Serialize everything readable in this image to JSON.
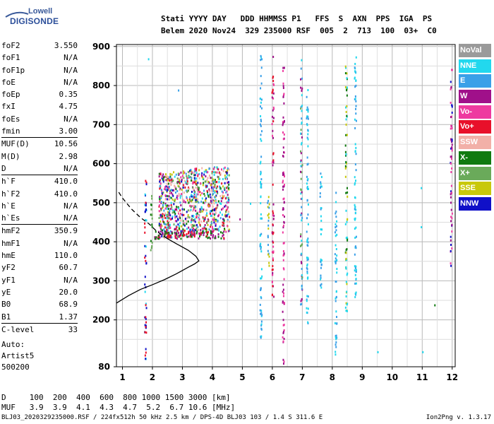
{
  "logo": {
    "top": "Lowell",
    "bottom": "DIGISONDE"
  },
  "header": {
    "line1": "Stati YYYY DAY   DDD HHMMSS P1   FFS  S  AXN  PPS  IGA  PS",
    "line2": "Belem 2020 Nov24  329 235000 RSF  005  2  713  100  03+  C0"
  },
  "params": [
    {
      "name": "foF2",
      "value": "3.550"
    },
    {
      "name": "foF1",
      "value": "N/A"
    },
    {
      "name": "foF1p",
      "value": "N/A"
    },
    {
      "name": "foE",
      "value": "N/A"
    },
    {
      "name": "foEp",
      "value": "0.35"
    },
    {
      "name": "fxI",
      "value": "4.75"
    },
    {
      "name": "foEs",
      "value": "N/A"
    },
    {
      "name": "fmin",
      "value": "3.00"
    },
    {
      "name": "MUF(D)",
      "value": "10.56",
      "sep": true
    },
    {
      "name": "M(D)",
      "value": "2.98"
    },
    {
      "name": "D",
      "value": "N/A"
    },
    {
      "name": "h`F",
      "value": "410.0",
      "sep": true
    },
    {
      "name": "h`F2",
      "value": "410.0"
    },
    {
      "name": "h`E",
      "value": "N/A"
    },
    {
      "name": "h`Es",
      "value": "N/A"
    },
    {
      "name": "hmF2",
      "value": "350.9",
      "sep": true
    },
    {
      "name": "hmF1",
      "value": "N/A"
    },
    {
      "name": "hmE",
      "value": "110.0"
    },
    {
      "name": "yF2",
      "value": "60.7"
    },
    {
      "name": "yF1",
      "value": "N/A"
    },
    {
      "name": "yE",
      "value": "20.0"
    },
    {
      "name": "B0",
      "value": "68.9"
    },
    {
      "name": "B1",
      "value": "1.37"
    },
    {
      "name": "C-level",
      "value": "33",
      "sep": true
    }
  ],
  "auto": [
    "Auto:",
    "Artist5",
    "500200"
  ],
  "legend": [
    {
      "label": "NoVal",
      "color": "#9a9a9a"
    },
    {
      "label": "NNE",
      "color": "#22d8ee"
    },
    {
      "label": "E",
      "color": "#3aa0e8"
    },
    {
      "label": "W",
      "color": "#a0108a"
    },
    {
      "label": "Vo-",
      "color": "#ee3aa0"
    },
    {
      "label": "Vo+",
      "color": "#e8102a"
    },
    {
      "label": "SSW",
      "color": "#f2b0a8"
    },
    {
      "label": "X-",
      "color": "#107a10"
    },
    {
      "label": "X+",
      "color": "#6aaa5a"
    },
    {
      "label": "SSE",
      "color": "#c8c80a"
    },
    {
      "label": "NNW",
      "color": "#1010c8"
    }
  ],
  "footer": {
    "line1": "D     100  200  400  600  800 1000 1500 3000 [km]",
    "line2": "MUF   3.9  3.9  4.1  4.3  4.7  5.2  6.7 10.6 [MHz]",
    "filename": "BLJ03_2020329235000.RSF / 224fx512h 50 kHz 2.5 km / DPS-4D BLJ03 103 / 1.4 S 311.6 E",
    "version": "Ion2Png v. 1.3.17"
  },
  "chart_data": {
    "type": "scatter",
    "xlim": [
      0.8,
      12.1
    ],
    "ylim": [
      80,
      905
    ],
    "xticks": [
      1,
      2,
      3,
      4,
      5,
      6,
      7,
      8,
      9,
      10,
      11,
      12
    ],
    "yticks": [
      80,
      200,
      300,
      400,
      500,
      600,
      700,
      800,
      900
    ],
    "grid": true,
    "profile_curve": {
      "x": [
        0.8,
        1.2,
        1.6,
        2.0,
        2.4,
        2.8,
        3.2,
        3.4,
        3.55,
        3.45,
        3.2,
        2.8,
        2.5,
        2.3,
        2.1,
        1.9,
        1.6,
        1.3,
        1.0,
        0.85
      ],
      "y": [
        243,
        262,
        278,
        290,
        303,
        318,
        335,
        343,
        351,
        363,
        378,
        395,
        408,
        418,
        430,
        445,
        462,
        484,
        512,
        530
      ]
    },
    "solid_upto_index": 12
  }
}
